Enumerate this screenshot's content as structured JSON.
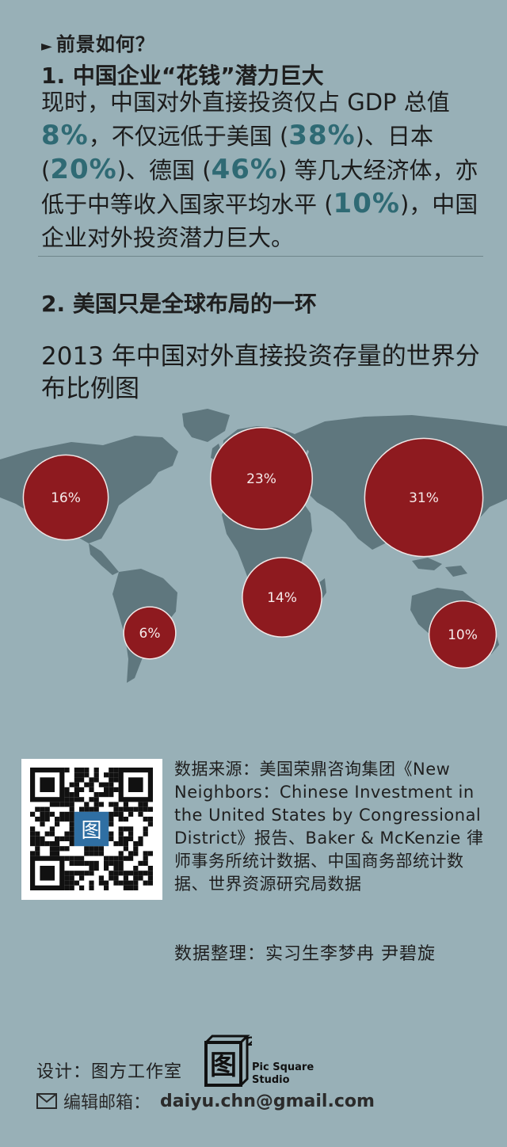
{
  "section_header": "前景如何？",
  "point1": {
    "heading": "1. 中国企业“花钱”潜力巨大",
    "text_a": "现时，中国对外直接投资仅占 GDP 总值 ",
    "v_china": "8%",
    "text_b": "，不仅远低于美国 (",
    "v_us": "38%",
    "text_c": ")、日本 (",
    "v_japan": "20%",
    "text_d": ")、德国 (",
    "v_germany": "46%",
    "text_e": ") 等几大经济体，亦低于中等收入国家平均水平 (",
    "v_mid": "10%",
    "text_f": ")，中国企业对外投资潜力巨大。"
  },
  "point2": {
    "heading": "2. 美国只是全球布局的一环"
  },
  "map_title": "2013 年中国对外直接投资存量的世界分布比例图",
  "chart_data": {
    "type": "bubble-map",
    "title": "2013 年中国对外直接投资存量的世界分布比例图",
    "regions": [
      {
        "region": "North America",
        "value": 16,
        "label": "16%"
      },
      {
        "region": "Europe",
        "value": 23,
        "label": "23%"
      },
      {
        "region": "Asia",
        "value": 31,
        "label": "31%"
      },
      {
        "region": "Africa",
        "value": 14,
        "label": "14%"
      },
      {
        "region": "South America",
        "value": 6,
        "label": "6%"
      },
      {
        "region": "Oceania",
        "value": 10,
        "label": "10%"
      }
    ],
    "colors": {
      "bubble": "#8e1a1f",
      "bubble_stroke": "#f0e6e6",
      "land": "#5f777e",
      "label": "#f5eaea"
    }
  },
  "source": {
    "text": "数据来源：美国荣鼎咨询集团《New Neighbors：Chinese Investment in the United States by Congressional District》报告、Baker & McKenzie 律师事务所统计数据、中国商务部统计数据、世界资源研究局数据"
  },
  "compiled_by": "数据整理：实习生李梦冉 尹碧旋",
  "footer": {
    "design_label": "设计：图方工作室",
    "logo_char": "图",
    "logo_sup": "2",
    "logo_line1": "Pic Square",
    "logo_line2": "Studio",
    "email_label": "编辑邮箱：",
    "email": "daiyu.chn@gmail.com"
  },
  "icons": {
    "qr": "qr-code-icon",
    "mail": "envelope-icon",
    "arrow": "play-triangle-icon"
  }
}
